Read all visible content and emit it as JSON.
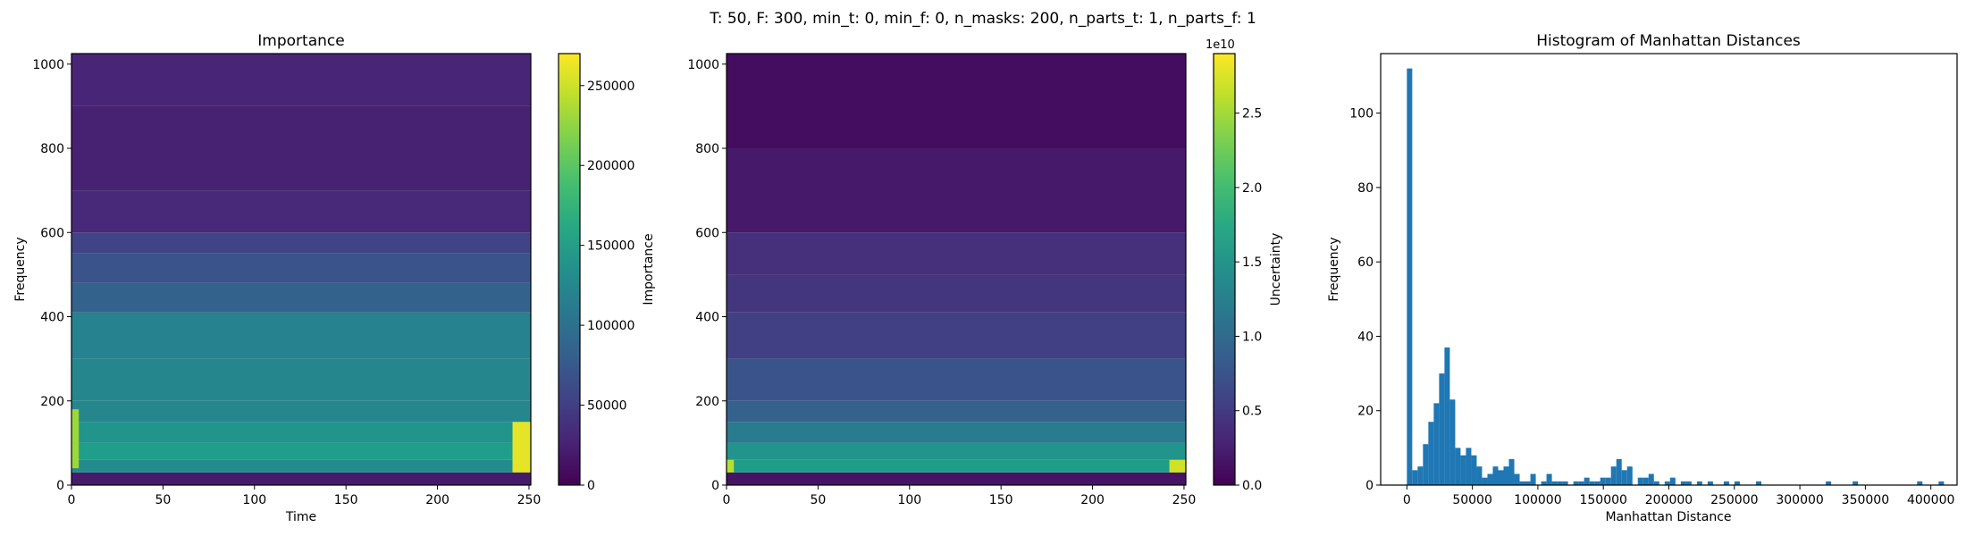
{
  "suptitle": "T: 50, F: 300, min_t: 0, min_f: 0, n_masks: 200, n_parts_t: 1, n_parts_f: 1",
  "colors": {
    "hist_bar": "#1f77b4",
    "colormap": "viridis"
  },
  "chart_data": [
    {
      "type": "heatmap",
      "title": "Importance",
      "xlabel": "Time",
      "ylabel": "Frequency",
      "colorbar_label": "Importance",
      "colorbar_offset_text": "",
      "xlim": [
        0,
        251
      ],
      "ylim": [
        0,
        1025
      ],
      "xticks": [
        0,
        50,
        100,
        150,
        200,
        250
      ],
      "yticks": [
        0,
        200,
        400,
        600,
        800,
        1000
      ],
      "colorbar_range": [
        0,
        270000
      ],
      "colorbar_ticks": [
        0,
        50000,
        100000,
        150000,
        200000,
        250000
      ],
      "freq_bands": [
        {
          "f0": 0,
          "f1": 30,
          "value": 20000
        },
        {
          "f0": 30,
          "f1": 60,
          "value": 130000
        },
        {
          "f0": 60,
          "f1": 100,
          "value": 150000
        },
        {
          "f0": 100,
          "f1": 150,
          "value": 140000
        },
        {
          "f0": 150,
          "f1": 200,
          "value": 125000
        },
        {
          "f0": 200,
          "f1": 300,
          "value": 125000
        },
        {
          "f0": 300,
          "f1": 410,
          "value": 120000
        },
        {
          "f0": 410,
          "f1": 480,
          "value": 85000
        },
        {
          "f0": 480,
          "f1": 550,
          "value": 70000
        },
        {
          "f0": 550,
          "f1": 600,
          "value": 55000
        },
        {
          "f0": 600,
          "f1": 700,
          "value": 30000
        },
        {
          "f0": 700,
          "f1": 900,
          "value": 25000
        },
        {
          "f0": 900,
          "f1": 1025,
          "value": 28000
        }
      ],
      "edge_hotspots": [
        {
          "t0": 0,
          "t1": 4,
          "f0": 40,
          "f1": 180,
          "value": 230000
        },
        {
          "t0": 241,
          "t1": 251,
          "f0": 30,
          "f1": 150,
          "value": 260000
        }
      ]
    },
    {
      "type": "heatmap",
      "title": "",
      "xlabel": "",
      "ylabel": "",
      "colorbar_label": "Uncertainty",
      "colorbar_offset_text": "1e10",
      "xlim": [
        0,
        251
      ],
      "ylim": [
        0,
        1025
      ],
      "xticks": [
        0,
        50,
        100,
        150,
        200,
        250
      ],
      "yticks": [
        0,
        200,
        400,
        600,
        800,
        1000
      ],
      "colorbar_range": [
        0,
        2.9
      ],
      "colorbar_ticks": [
        0.0,
        0.5,
        1.0,
        1.5,
        2.0,
        2.5
      ],
      "freq_bands": [
        {
          "f0": 0,
          "f1": 30,
          "value": 0.15
        },
        {
          "f0": 30,
          "f1": 60,
          "value": 1.6
        },
        {
          "f0": 60,
          "f1": 100,
          "value": 1.5
        },
        {
          "f0": 100,
          "f1": 150,
          "value": 1.2
        },
        {
          "f0": 150,
          "f1": 200,
          "value": 0.9
        },
        {
          "f0": 200,
          "f1": 300,
          "value": 0.75
        },
        {
          "f0": 300,
          "f1": 410,
          "value": 0.55
        },
        {
          "f0": 410,
          "f1": 500,
          "value": 0.45
        },
        {
          "f0": 500,
          "f1": 600,
          "value": 0.4
        },
        {
          "f0": 600,
          "f1": 800,
          "value": 0.2
        },
        {
          "f0": 800,
          "f1": 1025,
          "value": 0.1
        }
      ],
      "edge_hotspots": [
        {
          "t0": 0,
          "t1": 4,
          "f0": 30,
          "f1": 60,
          "value": 2.6
        },
        {
          "t0": 242,
          "t1": 251,
          "f0": 30,
          "f1": 60,
          "value": 2.7
        }
      ]
    },
    {
      "type": "bar",
      "title": "Histogram of Manhattan Distances",
      "xlabel": "Manhattan Distance",
      "ylabel": "Frequency",
      "xlim": [
        -20000,
        420000
      ],
      "ylim": [
        0,
        116
      ],
      "xticks": [
        0,
        50000,
        100000,
        150000,
        200000,
        250000,
        300000,
        350000,
        400000
      ],
      "yticks": [
        0,
        20,
        40,
        60,
        80,
        100
      ],
      "bin_width": 4100,
      "bins": [
        {
          "x": 0,
          "count": 112
        },
        {
          "x": 4100,
          "count": 4
        },
        {
          "x": 8200,
          "count": 5
        },
        {
          "x": 12300,
          "count": 11
        },
        {
          "x": 16400,
          "count": 17
        },
        {
          "x": 20500,
          "count": 22
        },
        {
          "x": 24600,
          "count": 30
        },
        {
          "x": 28700,
          "count": 37
        },
        {
          "x": 32800,
          "count": 23
        },
        {
          "x": 36900,
          "count": 10
        },
        {
          "x": 41000,
          "count": 8
        },
        {
          "x": 45100,
          "count": 10
        },
        {
          "x": 49200,
          "count": 8
        },
        {
          "x": 53300,
          "count": 5
        },
        {
          "x": 57400,
          "count": 2
        },
        {
          "x": 61500,
          "count": 3
        },
        {
          "x": 65600,
          "count": 5
        },
        {
          "x": 69700,
          "count": 4
        },
        {
          "x": 73800,
          "count": 5
        },
        {
          "x": 77900,
          "count": 7
        },
        {
          "x": 82000,
          "count": 3
        },
        {
          "x": 86100,
          "count": 1
        },
        {
          "x": 90200,
          "count": 1
        },
        {
          "x": 94300,
          "count": 3
        },
        {
          "x": 102500,
          "count": 1
        },
        {
          "x": 106600,
          "count": 3
        },
        {
          "x": 110700,
          "count": 1
        },
        {
          "x": 114800,
          "count": 1
        },
        {
          "x": 118900,
          "count": 1
        },
        {
          "x": 127100,
          "count": 1
        },
        {
          "x": 131200,
          "count": 1
        },
        {
          "x": 135300,
          "count": 2
        },
        {
          "x": 139400,
          "count": 1
        },
        {
          "x": 143500,
          "count": 1
        },
        {
          "x": 147600,
          "count": 2
        },
        {
          "x": 151700,
          "count": 2
        },
        {
          "x": 155800,
          "count": 5
        },
        {
          "x": 159900,
          "count": 7
        },
        {
          "x": 164000,
          "count": 4
        },
        {
          "x": 168100,
          "count": 5
        },
        {
          "x": 176300,
          "count": 2
        },
        {
          "x": 180400,
          "count": 2
        },
        {
          "x": 184500,
          "count": 3
        },
        {
          "x": 188600,
          "count": 1
        },
        {
          "x": 196800,
          "count": 1
        },
        {
          "x": 200900,
          "count": 2
        },
        {
          "x": 209100,
          "count": 1
        },
        {
          "x": 213200,
          "count": 1
        },
        {
          "x": 221400,
          "count": 1
        },
        {
          "x": 229600,
          "count": 1
        },
        {
          "x": 241900,
          "count": 1
        },
        {
          "x": 250100,
          "count": 1
        },
        {
          "x": 266500,
          "count": 1
        },
        {
          "x": 319800,
          "count": 1
        },
        {
          "x": 340300,
          "count": 1
        },
        {
          "x": 389500,
          "count": 1
        },
        {
          "x": 405900,
          "count": 1
        }
      ]
    }
  ]
}
